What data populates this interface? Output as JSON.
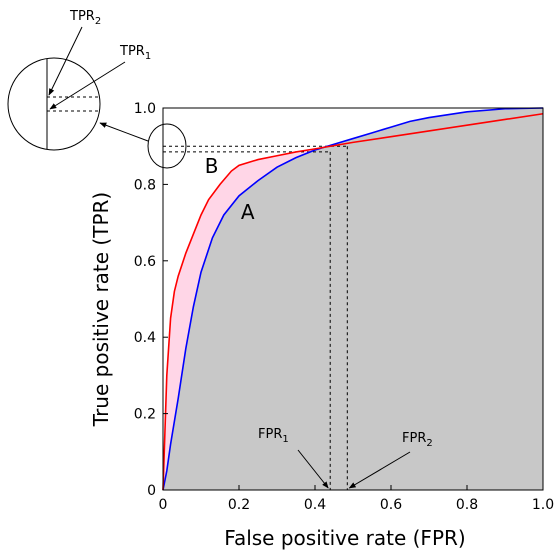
{
  "chart_data": {
    "type": "line",
    "xlabel": "False positive rate (FPR)",
    "ylabel": "True positive rate (TPR)",
    "xlim": [
      0,
      1
    ],
    "ylim": [
      0,
      1
    ],
    "x_ticks": [
      "0",
      "0.2",
      "0.4",
      "0.6",
      "0.8",
      "1.0"
    ],
    "y_ticks": [
      "0",
      "0.2",
      "0.4",
      "0.6",
      "0.8",
      "1.0"
    ],
    "grid": false,
    "fill_colors": {
      "area_under_A": "#c8c8c8",
      "difference": "#ffd6e7"
    },
    "series": [
      {
        "name": "A",
        "color": "#0000ff",
        "x": [
          0,
          0.01,
          0.02,
          0.04,
          0.06,
          0.08,
          0.1,
          0.13,
          0.16,
          0.2,
          0.25,
          0.3,
          0.35,
          0.4,
          0.45,
          0.5,
          0.55,
          0.6,
          0.65,
          0.7,
          0.8,
          0.9,
          1.0
        ],
        "y": [
          0,
          0.05,
          0.12,
          0.24,
          0.37,
          0.48,
          0.57,
          0.66,
          0.72,
          0.77,
          0.81,
          0.845,
          0.87,
          0.89,
          0.905,
          0.92,
          0.935,
          0.95,
          0.965,
          0.975,
          0.99,
          0.998,
          1.0
        ]
      },
      {
        "name": "B",
        "color": "#ff0000",
        "x": [
          0,
          0.005,
          0.01,
          0.02,
          0.03,
          0.04,
          0.06,
          0.08,
          0.1,
          0.12,
          0.15,
          0.18,
          0.2,
          0.25,
          0.3,
          0.35,
          0.4,
          0.5,
          0.6,
          0.7,
          0.8,
          0.9,
          1.0
        ],
        "y": [
          0,
          0.15,
          0.3,
          0.45,
          0.52,
          0.56,
          0.62,
          0.67,
          0.72,
          0.76,
          0.8,
          0.835,
          0.85,
          0.865,
          0.875,
          0.885,
          0.893,
          0.91,
          0.925,
          0.94,
          0.955,
          0.97,
          0.985
        ]
      }
    ],
    "curve_labels": [
      "A",
      "B"
    ],
    "annotations": {
      "fpr1": {
        "x": 0.44
      },
      "fpr2": {
        "x": 0.485
      },
      "tpr1": {
        "y": 0.885
      },
      "tpr2": {
        "y": 0.9
      },
      "fpr1_label": {
        "base": "FPR",
        "sub": "1"
      },
      "fpr2_label": {
        "base": "FPR",
        "sub": "2"
      },
      "tpr1_label": {
        "base": "TPR",
        "sub": "1"
      },
      "tpr2_label": {
        "base": "TPR",
        "sub": "2"
      }
    }
  }
}
